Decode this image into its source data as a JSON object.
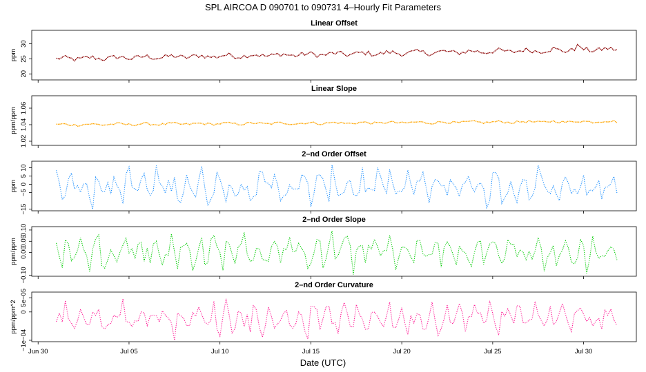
{
  "figure": {
    "title": "SPL    AIRCOA D    090701 to 090731    4–Hourly Fit Parameters",
    "xlabel": "Date (UTC)",
    "xticks": [
      "Jun 30",
      "Jul 05",
      "Jul 10",
      "Jul 15",
      "Jul 20",
      "Jul 25",
      "Jul 30"
    ]
  },
  "chart_data": [
    {
      "type": "line",
      "title": "Linear Offset",
      "ylabel": "ppm",
      "ylim": [
        18,
        34.5
      ],
      "yticks": [
        "20",
        "25",
        "30"
      ],
      "ytick_values": [
        20,
        25,
        30
      ],
      "color": "#8b0000",
      "style": "small-dots",
      "x_start": "Jul 01 00:00",
      "x_end": "Jul 31 23:59",
      "x_step_hours": 4,
      "trend": {
        "start": 25.0,
        "end": 28.2
      },
      "noise_amplitude": 0.8,
      "spikes": [
        {
          "x_day": 28.7,
          "value": 29.8
        },
        {
          "x_day": 27.4,
          "value": 28.9
        }
      ]
    },
    {
      "type": "line",
      "title": "Linear Slope",
      "ylabel": "ppm/ppm",
      "ylim": [
        1.015,
        1.075
      ],
      "yticks": [
        "1.02",
        "1.04",
        "1.06"
      ],
      "ytick_values": [
        1.02,
        1.04,
        1.06
      ],
      "color": "#ffa500",
      "style": "small-dots",
      "x_start": "Jul 01 00:00",
      "x_end": "Jul 31 23:59",
      "x_step_hours": 4,
      "trend": {
        "start": 1.04,
        "end": 1.044
      },
      "noise_amplitude": 0.0015
    },
    {
      "type": "line",
      "title": "2–nd Order Offset",
      "ylabel": "ppm",
      "ylim": [
        -16,
        14
      ],
      "yticks": [
        "−15",
        "−5",
        "0",
        "5",
        "10"
      ],
      "ytick_values": [
        -15,
        -5,
        0,
        5,
        10
      ],
      "color": "#1e90ff",
      "style": "dotted",
      "x_start": "Jul 01 00:00",
      "x_end": "Jul 31 23:59",
      "x_step_hours": 4,
      "range": [
        -16,
        13
      ]
    },
    {
      "type": "line",
      "title": "2–nd Order Slope",
      "ylabel": "ppm/ppm",
      "ylim": [
        -0.105,
        0.115
      ],
      "yticks": [
        "−0.10",
        "0.00",
        "0.05",
        "0.10"
      ],
      "ytick_values": [
        -0.1,
        0,
        0.05,
        0.1
      ],
      "color": "#00cc00",
      "style": "dotted",
      "x_start": "Jul 01 00:00",
      "x_end": "Jul 31 23:59",
      "x_step_hours": 4,
      "range": [
        -0.1,
        0.11
      ]
    },
    {
      "type": "line",
      "title": "2–nd Order Curvature",
      "ylabel": "ppm/ppm^2",
      "ylim": [
        -0.000105,
        7e-05
      ],
      "yticks": [
        "−1e−04",
        "0",
        "5e−05"
      ],
      "ytick_values": [
        -0.0001,
        0,
        5e-05
      ],
      "color": "#ff1493",
      "style": "dotted",
      "x_start": "Jul 01 00:00",
      "x_end": "Jul 31 23:59",
      "x_step_hours": 4,
      "range": [
        -0.0001,
        6e-05
      ]
    }
  ]
}
